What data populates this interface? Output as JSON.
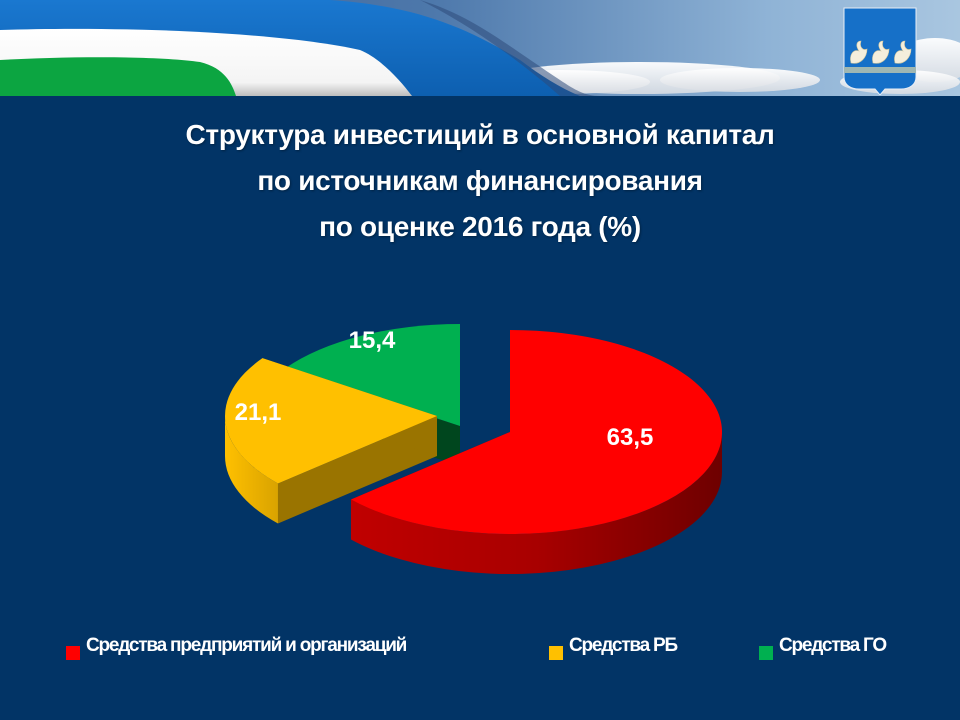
{
  "slide": {
    "background": "#023466",
    "title_lines": [
      "Структура инвестиций в основной капитал",
      "по источникам финансирования",
      "по оценке 2016 года (%)"
    ]
  },
  "header": {
    "emblem": "coat-of-arms-swans-icon",
    "colors": {
      "blue_band": "#1670c8",
      "white_band": "#ffffff",
      "green_band": "#0ca541",
      "sky": "#6d9bc6"
    }
  },
  "chart_data": {
    "type": "pie",
    "style": "3d-exploded",
    "title": "Структура инвестиций в основной капитал по источникам финансирования по оценке 2016 года (%)",
    "categories": [
      "Средства предприятий и организаций",
      "Средства РБ",
      "Средства ГО"
    ],
    "values": [
      63.5,
      21.1,
      15.4
    ],
    "value_labels": [
      "63,5",
      "21,1",
      "15,4"
    ],
    "colors": [
      "#ff0000",
      "#ffc000",
      "#00b050"
    ],
    "unit": "%",
    "legend_position": "bottom"
  },
  "legend": {
    "items": [
      {
        "label": "Средства предприятий и организаций",
        "color": "#ff0000"
      },
      {
        "label": "Средства РБ",
        "color": "#ffc000"
      },
      {
        "label": "Средства ГО",
        "color": "#00b050"
      }
    ]
  }
}
